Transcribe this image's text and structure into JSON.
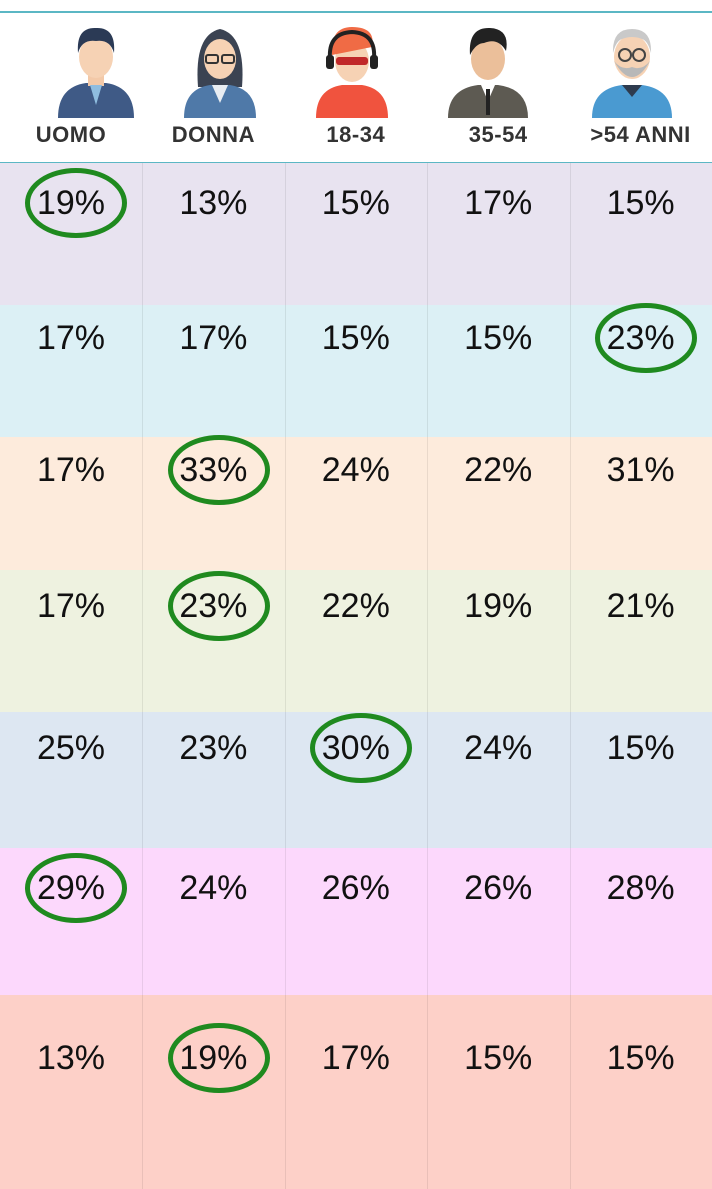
{
  "table": {
    "header": [
      "UOMO",
      "DONNA",
      "18-34",
      "35-54",
      ">54 ANNI"
    ],
    "rows": [
      [
        "19%",
        "13%",
        "15%",
        "17%",
        "15%"
      ],
      [
        "17%",
        "17%",
        "15%",
        "15%",
        "23%"
      ],
      [
        "17%",
        "33%",
        "24%",
        "22%",
        "31%"
      ],
      [
        "17%",
        "23%",
        "22%",
        "19%",
        "21%"
      ],
      [
        "25%",
        "23%",
        "30%",
        "24%",
        "15%"
      ],
      [
        "29%",
        "24%",
        "26%",
        "26%",
        "28%"
      ],
      [
        "13%",
        "19%",
        "17%",
        "15%",
        "15%"
      ]
    ],
    "row_colors": [
      "#e8e3f0",
      "#dcf0f5",
      "#fdebdc",
      "#eef2e0",
      "#dde7f2",
      "#fcd8fc",
      "#fdd0c8"
    ],
    "highlight_color": "#1f8a1f",
    "highlighted_columns": [
      0,
      4,
      1,
      1,
      2,
      0,
      1
    ]
  }
}
